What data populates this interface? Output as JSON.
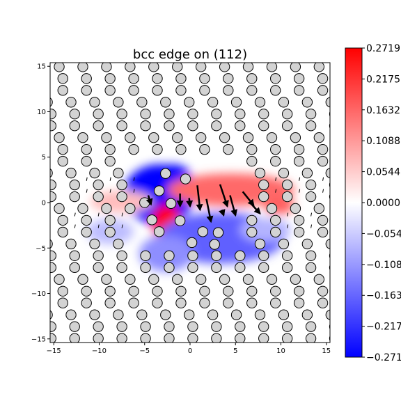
{
  "chart_data": {
    "type": "scatter",
    "title": "bcc edge on (112)",
    "xlabel": "",
    "ylabel": "",
    "xlim": [
      -15.4,
      15.4
    ],
    "ylim": [
      -15.4,
      15.4
    ],
    "xticks": [
      -15,
      -10,
      -5,
      0,
      5,
      10,
      15
    ],
    "yticks": [
      -15,
      -10,
      -5,
      0,
      5,
      10,
      15
    ],
    "xtick_labels": [
      "−15",
      "−10",
      "−5",
      "0",
      "5",
      "10",
      "15"
    ],
    "ytick_labels": [
      "−15",
      "−10",
      "−5",
      "0",
      "5",
      "10",
      "15"
    ],
    "grid": false,
    "lattice": {
      "row_spacing": 1.3,
      "row_y0": -14.95,
      "col_spacing": 2.6,
      "stagger": 1.3,
      "row_offsets": [
        0.3,
        1.6,
        2.5
      ],
      "marker_face": "#d3d3d3",
      "marker_edge": "#000000",
      "highlighted_atoms": [
        {
          "x": -2.7,
          "y": 3.2
        },
        {
          "x": -0.5,
          "y": 2.6
        },
        {
          "x": -3.4,
          "y": 1.3
        },
        {
          "x": -5.0,
          "y": 0.0
        },
        {
          "x": -2.1,
          "y": -0.1
        },
        {
          "x": -4.2,
          "y": -1.9
        },
        {
          "x": -3.4,
          "y": -3.2
        },
        {
          "x": -1.1,
          "y": -2.0
        },
        {
          "x": 1.4,
          "y": -3.2
        },
        {
          "x": 3.1,
          "y": -3.3
        },
        {
          "x": 0.2,
          "y": -4.4
        },
        {
          "x": 2.7,
          "y": -4.6
        }
      ]
    },
    "field": {
      "blobs": [
        {
          "x": -3.4,
          "y": 0.9,
          "rx": 3.9,
          "ry": 3.3,
          "value": -0.2719
        },
        {
          "x": -1.9,
          "y": 2.5,
          "rx": 2.1,
          "ry": 1.7,
          "value": -0.2719
        },
        {
          "x": -2.6,
          "y": -2.2,
          "rx": 1.6,
          "ry": 2.0,
          "value": 0.2719
        },
        {
          "x": 3.4,
          "y": -3.9,
          "rx": 7.0,
          "ry": 2.8,
          "value": -0.17
        },
        {
          "x": -2.6,
          "y": -5.6,
          "rx": 3.0,
          "ry": 2.0,
          "value": -0.12
        },
        {
          "x": 4.5,
          "y": 1.4,
          "rx": 7.0,
          "ry": 1.8,
          "value": 0.16
        },
        {
          "x": 9.8,
          "y": -0.3,
          "rx": 1.7,
          "ry": 1.0,
          "value": 0.17
        },
        {
          "x": -7.6,
          "y": 0.1,
          "rx": 3.4,
          "ry": 1.2,
          "value": 0.07
        },
        {
          "x": 8.3,
          "y": -3.0,
          "rx": 2.8,
          "ry": 1.3,
          "value": -0.08
        },
        {
          "x": -8.8,
          "y": -3.2,
          "rx": 2.6,
          "ry": 1.4,
          "value": -0.07
        }
      ]
    },
    "arrows": [
      {
        "x": 0.8,
        "y": 1.9,
        "dx": 0.3,
        "dy": -2.7
      },
      {
        "x": 1.8,
        "y": 0.4,
        "dx": 0.5,
        "dy": -2.5
      },
      {
        "x": 3.3,
        "y": 2.0,
        "dx": 0.8,
        "dy": -2.4
      },
      {
        "x": 4.4,
        "y": 0.8,
        "dx": 0.6,
        "dy": -2.2
      },
      {
        "x": 5.8,
        "y": 1.2,
        "dx": 1.2,
        "dy": -1.5
      },
      {
        "x": 6.6,
        "y": 0.0,
        "dx": 1.1,
        "dy": -1.2
      },
      {
        "x": -1.1,
        "y": 1.0,
        "dx": 0.0,
        "dy": -1.4
      },
      {
        "x": -4.6,
        "y": 0.8,
        "dx": 0.3,
        "dy": -1.0
      },
      {
        "x": -0.1,
        "y": 0.5,
        "dx": 0.1,
        "dy": -0.9
      },
      {
        "x": 3.5,
        "y": -0.8,
        "dx": 0.2,
        "dy": -0.6
      }
    ],
    "colorbar": {
      "vmin": -0.2719,
      "vmax": 0.2719,
      "cmap": [
        "#0000ff",
        "#ffffff",
        "#ff0000"
      ],
      "ticks": [
        0.2719,
        0.2175,
        0.1632,
        0.1088,
        0.0544,
        0.0,
        -0.0544,
        -0.1088,
        -0.1632,
        -0.2175,
        -0.2719
      ],
      "tick_labels": [
        "0.2719",
        "0.2175",
        "0.1632",
        "0.1088",
        "0.0544",
        "0.0000",
        "−0.0544",
        "−0.1088",
        "−0.1632",
        "−0.2175",
        "−0.2719"
      ]
    },
    "legend": "none"
  }
}
